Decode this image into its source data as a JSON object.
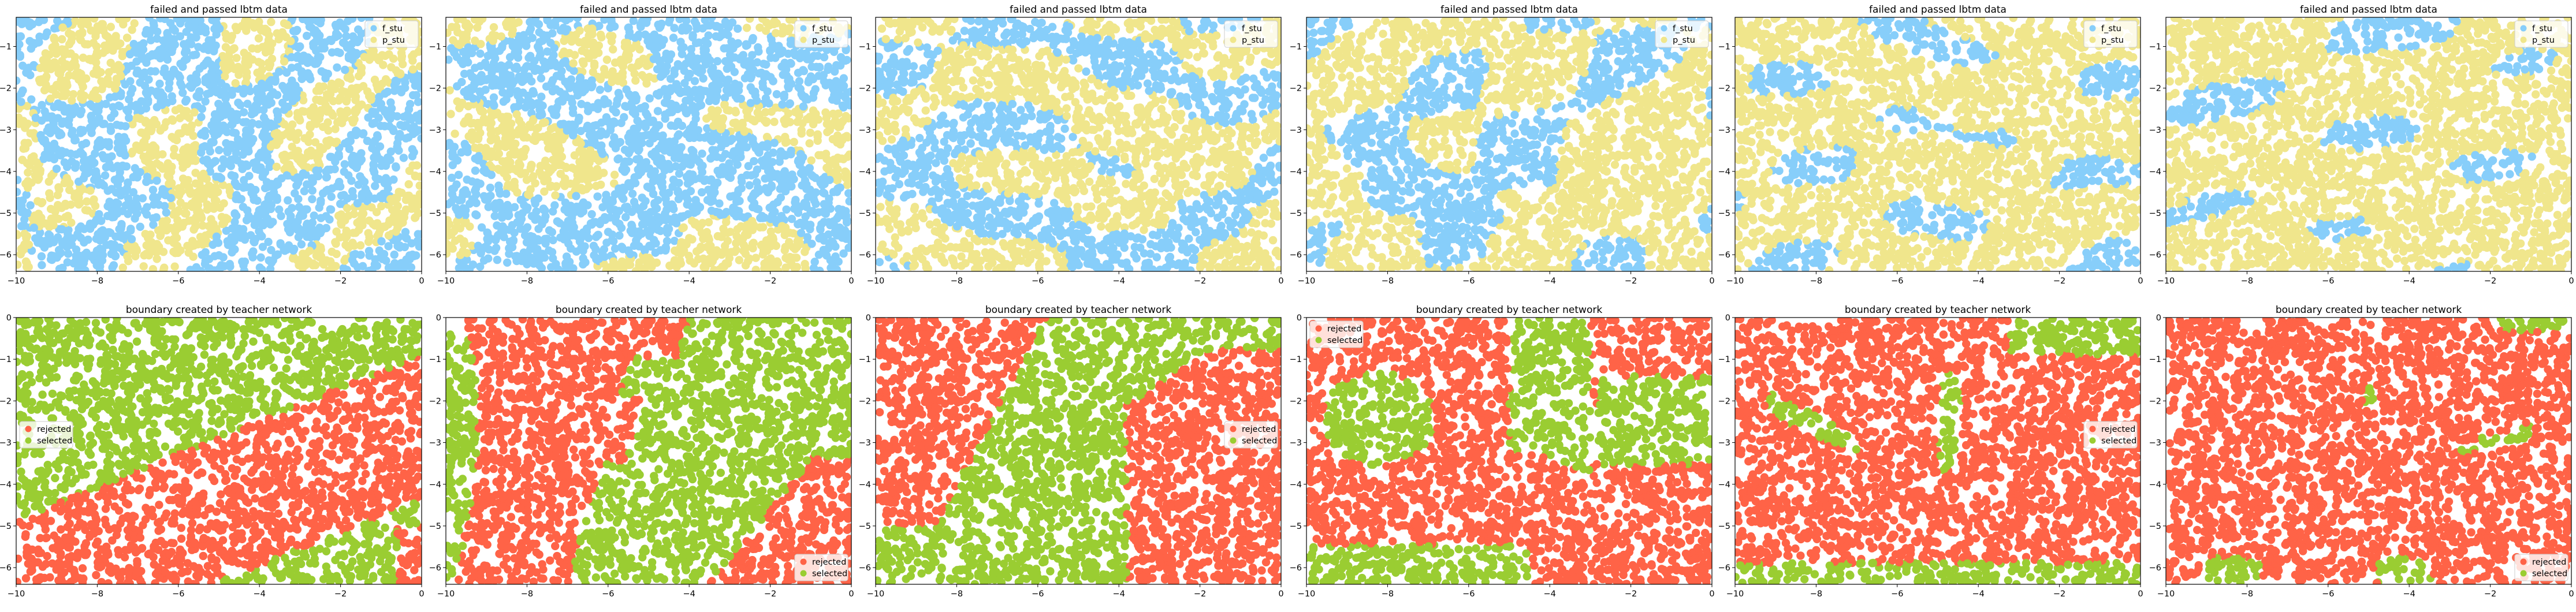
{
  "chart_data": [
    {
      "type": "scatter",
      "title": "failed and passed lbtm data",
      "series": [
        {
          "name": "f_stu",
          "color": "#87cefa"
        },
        {
          "name": "p_stu",
          "color": "#f0e68c"
        }
      ],
      "legend_position": "upper right",
      "xlim": [
        -10,
        0
      ],
      "ylim": [
        -6.4,
        -0.3
      ],
      "x_ticks": [
        "−10",
        "−8",
        "−6",
        "−4",
        "−2",
        "0"
      ],
      "y_ticks": [
        "−1",
        "−2",
        "−3",
        "−4",
        "−5",
        "−6"
      ]
    },
    {
      "type": "scatter",
      "title": "failed and passed lbtm data",
      "series": [
        {
          "name": "f_stu",
          "color": "#87cefa"
        },
        {
          "name": "p_stu",
          "color": "#f0e68c"
        }
      ],
      "legend_position": "upper right",
      "xlim": [
        -10,
        0
      ],
      "ylim": [
        -6.4,
        -0.3
      ],
      "x_ticks": [
        "−10",
        "−8",
        "−6",
        "−4",
        "−2",
        "0"
      ],
      "y_ticks": [
        "−1",
        "−2",
        "−3",
        "−4",
        "−5",
        "−6"
      ]
    },
    {
      "type": "scatter",
      "title": "failed and passed lbtm data",
      "series": [
        {
          "name": "f_stu",
          "color": "#87cefa"
        },
        {
          "name": "p_stu",
          "color": "#f0e68c"
        }
      ],
      "legend_position": "upper right",
      "xlim": [
        -10,
        0
      ],
      "ylim": [
        -6.4,
        -0.3
      ],
      "x_ticks": [
        "−10",
        "−8",
        "−6",
        "−4",
        "−2",
        "0"
      ],
      "y_ticks": [
        "−1",
        "−2",
        "−3",
        "−4",
        "−5",
        "−6"
      ]
    },
    {
      "type": "scatter",
      "title": "failed and passed lbtm data",
      "series": [
        {
          "name": "f_stu",
          "color": "#87cefa"
        },
        {
          "name": "p_stu",
          "color": "#f0e68c"
        }
      ],
      "legend_position": "upper right",
      "xlim": [
        -10,
        0
      ],
      "ylim": [
        -6.4,
        -0.3
      ],
      "x_ticks": [
        "−10",
        "−8",
        "−6",
        "−4",
        "−2",
        "0"
      ],
      "y_ticks": [
        "−1",
        "−2",
        "−3",
        "−4",
        "−5",
        "−6"
      ]
    },
    {
      "type": "scatter",
      "title": "failed and passed lbtm data",
      "series": [
        {
          "name": "f_stu",
          "color": "#87cefa"
        },
        {
          "name": "p_stu",
          "color": "#f0e68c"
        }
      ],
      "legend_position": "upper right",
      "xlim": [
        -10,
        0
      ],
      "ylim": [
        -6.4,
        -0.3
      ],
      "x_ticks": [
        "−10",
        "−8",
        "−6",
        "−4",
        "−2",
        "0"
      ],
      "y_ticks": [
        "−1",
        "−2",
        "−3",
        "−4",
        "−5",
        "−6"
      ]
    },
    {
      "type": "scatter",
      "title": "failed and passed lbtm data",
      "series": [
        {
          "name": "f_stu",
          "color": "#87cefa"
        },
        {
          "name": "p_stu",
          "color": "#f0e68c"
        }
      ],
      "legend_position": "upper right",
      "xlim": [
        -10,
        0
      ],
      "ylim": [
        -6.4,
        -0.3
      ],
      "x_ticks": [
        "−10",
        "−8",
        "−6",
        "−4",
        "−2",
        "0"
      ],
      "y_ticks": [
        "−1",
        "−2",
        "−3",
        "−4",
        "−5",
        "−6"
      ]
    },
    {
      "type": "scatter",
      "title": "boundary created by teacher network",
      "series": [
        {
          "name": "rejected",
          "color": "#ff6347"
        },
        {
          "name": "selected",
          "color": "#9acd32"
        }
      ],
      "legend_position": "center left",
      "xlim": [
        -10,
        0
      ],
      "ylim": [
        -6.4,
        0
      ],
      "x_ticks": [
        "−10",
        "−8",
        "−6",
        "−4",
        "−2",
        "0"
      ],
      "y_ticks": [
        "0",
        "−1",
        "−2",
        "−3",
        "−4",
        "−5",
        "−6"
      ]
    },
    {
      "type": "scatter",
      "title": "boundary created by teacher network",
      "series": [
        {
          "name": "rejected",
          "color": "#ff6347"
        },
        {
          "name": "selected",
          "color": "#9acd32"
        }
      ],
      "legend_position": "lower right",
      "xlim": [
        -10,
        0
      ],
      "ylim": [
        -6.4,
        0
      ],
      "x_ticks": [
        "−10",
        "−8",
        "−6",
        "−4",
        "−2",
        "0"
      ],
      "y_ticks": [
        "0",
        "−1",
        "−2",
        "−3",
        "−4",
        "−5",
        "−6"
      ]
    },
    {
      "type": "scatter",
      "title": "boundary created by teacher network",
      "series": [
        {
          "name": "rejected",
          "color": "#ff6347"
        },
        {
          "name": "selected",
          "color": "#9acd32"
        }
      ],
      "legend_position": "center right",
      "xlim": [
        -10,
        0
      ],
      "ylim": [
        -6.4,
        0
      ],
      "x_ticks": [
        "−10",
        "−8",
        "−6",
        "−4",
        "−2",
        "0"
      ],
      "y_ticks": [
        "0",
        "−1",
        "−2",
        "−3",
        "−4",
        "−5",
        "−6"
      ]
    },
    {
      "type": "scatter",
      "title": "boundary created by teacher network",
      "series": [
        {
          "name": "rejected",
          "color": "#ff6347"
        },
        {
          "name": "selected",
          "color": "#9acd32"
        }
      ],
      "legend_position": "upper left",
      "xlim": [
        -10,
        0
      ],
      "ylim": [
        -6.4,
        0
      ],
      "x_ticks": [
        "−10",
        "−8",
        "−6",
        "−4",
        "−2",
        "0"
      ],
      "y_ticks": [
        "0",
        "−1",
        "−2",
        "−3",
        "−4",
        "−5",
        "−6"
      ]
    },
    {
      "type": "scatter",
      "title": "boundary created by teacher network",
      "series": [
        {
          "name": "rejected",
          "color": "#ff6347"
        },
        {
          "name": "selected",
          "color": "#9acd32"
        }
      ],
      "legend_position": "center right",
      "xlim": [
        -10,
        0
      ],
      "ylim": [
        -6.4,
        0
      ],
      "x_ticks": [
        "−10",
        "−8",
        "−6",
        "−4",
        "−2",
        "0"
      ],
      "y_ticks": [
        "0",
        "−1",
        "−2",
        "−3",
        "−4",
        "−5",
        "−6"
      ]
    },
    {
      "type": "scatter",
      "title": "boundary created by teacher network",
      "series": [
        {
          "name": "rejected",
          "color": "#ff6347"
        },
        {
          "name": "selected",
          "color": "#9acd32"
        }
      ],
      "legend_position": "lower right",
      "xlim": [
        -10,
        0
      ],
      "ylim": [
        -6.4,
        0
      ],
      "x_ticks": [
        "−10",
        "−8",
        "−6",
        "−4",
        "−2",
        "0"
      ],
      "y_ticks": [
        "0",
        "−1",
        "−2",
        "−3",
        "−4",
        "−5",
        "−6"
      ]
    }
  ]
}
